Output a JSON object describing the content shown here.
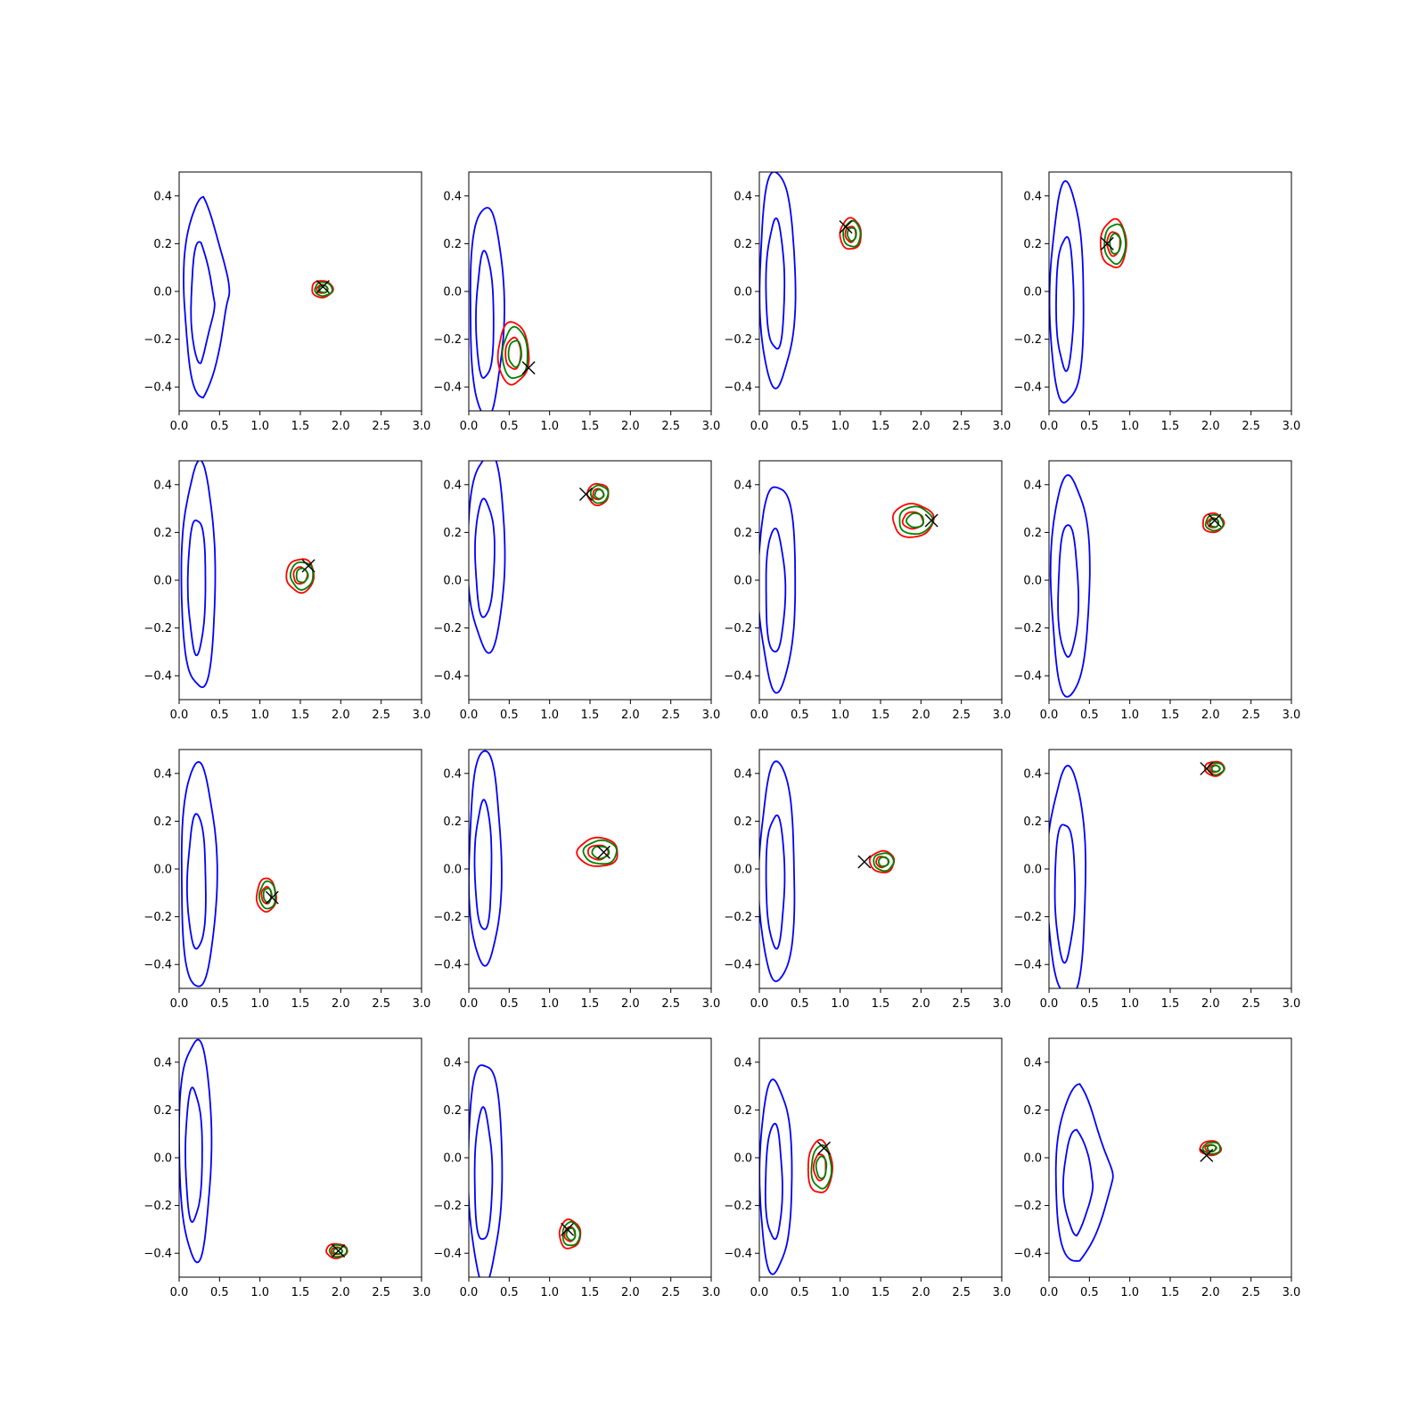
{
  "colors": {
    "broad_contour": "#0000ff",
    "green_contour": "#008000",
    "red_contour": "#ff0000",
    "marker": "#000000"
  },
  "chart_data": [
    {
      "type": "contour",
      "xlim": [
        0,
        3
      ],
      "ylim": [
        -0.5,
        0.5
      ],
      "xticks": [
        "0.0",
        "0.5",
        "1.0",
        "1.5",
        "2.0",
        "2.5",
        "3.0"
      ],
      "yticks": [
        "−0.4",
        "−0.2",
        "0.0",
        "0.2",
        "0.4"
      ],
      "broad": {
        "cx": 0.3,
        "cy": -0.02,
        "w": 0.6,
        "h": 0.84,
        "shape": "triangle"
      },
      "narrow": {
        "center": [
          1.77,
          0.01
        ],
        "w": 0.26,
        "h": 0.07
      },
      "marker": [
        1.78,
        0.02
      ]
    },
    {
      "type": "contour",
      "xlim": [
        0,
        3
      ],
      "ylim": [
        -0.5,
        0.5
      ],
      "xticks": [
        "0.0",
        "0.5",
        "1.0",
        "1.5",
        "2.0",
        "2.5",
        "3.0"
      ],
      "yticks": [
        "−0.4",
        "−0.2",
        "0.0",
        "0.2",
        "0.4"
      ],
      "broad": {
        "cx": 0.22,
        "cy": -0.08,
        "w": 0.42,
        "h": 0.88,
        "shape": "ellipse"
      },
      "narrow": {
        "center": [
          0.55,
          -0.26
        ],
        "w": 0.38,
        "h": 0.26
      },
      "marker": [
        0.74,
        -0.32
      ]
    },
    {
      "type": "contour",
      "xlim": [
        0,
        3
      ],
      "ylim": [
        -0.5,
        0.5
      ],
      "xticks": [
        "0.0",
        "0.5",
        "1.0",
        "1.5",
        "2.0",
        "2.5",
        "3.0"
      ],
      "yticks": [
        "−0.4",
        "−0.2",
        "0.0",
        "0.2",
        "0.4"
      ],
      "broad": {
        "cx": 0.22,
        "cy": 0.05,
        "w": 0.44,
        "h": 0.9,
        "shape": "ellipse"
      },
      "narrow": {
        "center": [
          1.13,
          0.24
        ],
        "w": 0.26,
        "h": 0.13
      },
      "marker": [
        1.07,
        0.27
      ]
    },
    {
      "type": "contour",
      "xlim": [
        0,
        3
      ],
      "ylim": [
        -0.5,
        0.5
      ],
      "xticks": [
        "0.0",
        "0.5",
        "1.0",
        "1.5",
        "2.0",
        "2.5",
        "3.0"
      ],
      "yticks": [
        "−0.4",
        "−0.2",
        "0.0",
        "0.2",
        "0.4"
      ],
      "broad": {
        "cx": 0.22,
        "cy": -0.02,
        "w": 0.42,
        "h": 0.92,
        "shape": "ellipse"
      },
      "narrow": {
        "center": [
          0.8,
          0.2
        ],
        "w": 0.32,
        "h": 0.2
      },
      "marker": [
        0.72,
        0.2
      ]
    },
    {
      "type": "contour",
      "xlim": [
        0,
        3
      ],
      "ylim": [
        -0.5,
        0.5
      ],
      "xticks": [
        "0.0",
        "0.5",
        "1.0",
        "1.5",
        "2.0",
        "2.5",
        "3.0"
      ],
      "yticks": [
        "−0.4",
        "−0.2",
        "0.0",
        "0.2",
        "0.4"
      ],
      "broad": {
        "cx": 0.24,
        "cy": 0.01,
        "w": 0.42,
        "h": 0.94,
        "shape": "ellipse"
      },
      "narrow": {
        "center": [
          1.5,
          0.02
        ],
        "w": 0.34,
        "h": 0.14
      },
      "marker": [
        1.6,
        0.06
      ]
    },
    {
      "type": "contour",
      "xlim": [
        0,
        3
      ],
      "ylim": [
        -0.5,
        0.5
      ],
      "xticks": [
        "0.0",
        "0.5",
        "1.0",
        "1.5",
        "2.0",
        "2.5",
        "3.0"
      ],
      "yticks": [
        "−0.4",
        "−0.2",
        "0.0",
        "0.2",
        "0.4"
      ],
      "broad": {
        "cx": 0.22,
        "cy": 0.12,
        "w": 0.46,
        "h": 0.82,
        "shape": "ellipse"
      },
      "narrow": {
        "center": [
          1.6,
          0.36
        ],
        "w": 0.26,
        "h": 0.09
      },
      "marker": [
        1.45,
        0.36
      ]
    },
    {
      "type": "contour",
      "xlim": [
        0,
        3
      ],
      "ylim": [
        -0.5,
        0.5
      ],
      "xticks": [
        "0.0",
        "0.5",
        "1.0",
        "1.5",
        "2.0",
        "2.5",
        "3.0"
      ],
      "yticks": [
        "−0.4",
        "−0.2",
        "0.0",
        "0.2",
        "0.4"
      ],
      "broad": {
        "cx": 0.22,
        "cy": -0.02,
        "w": 0.46,
        "h": 0.86,
        "shape": "ellipse"
      },
      "narrow": {
        "center": [
          1.9,
          0.25
        ],
        "w": 0.5,
        "h": 0.14
      },
      "marker": [
        2.13,
        0.25
      ]
    },
    {
      "type": "contour",
      "xlim": [
        0,
        3
      ],
      "ylim": [
        -0.5,
        0.5
      ],
      "xticks": [
        "0.0",
        "0.5",
        "1.0",
        "1.5",
        "2.0",
        "2.5",
        "3.0"
      ],
      "yticks": [
        "−0.4",
        "−0.2",
        "0.0",
        "0.2",
        "0.4"
      ],
      "broad": {
        "cx": 0.26,
        "cy": -0.02,
        "w": 0.48,
        "h": 0.92,
        "shape": "ellipse"
      },
      "narrow": {
        "center": [
          2.03,
          0.24
        ],
        "w": 0.26,
        "h": 0.08
      },
      "marker": [
        2.05,
        0.25
      ]
    },
    {
      "type": "contour",
      "xlim": [
        0,
        3
      ],
      "ylim": [
        -0.5,
        0.5
      ],
      "xticks": [
        "0.0",
        "0.5",
        "1.0",
        "1.5",
        "2.0",
        "2.5",
        "3.0"
      ],
      "yticks": [
        "−0.4",
        "−0.2",
        "0.0",
        "0.2",
        "0.4"
      ],
      "broad": {
        "cx": 0.24,
        "cy": -0.03,
        "w": 0.44,
        "h": 0.94,
        "shape": "ellipse"
      },
      "narrow": {
        "center": [
          1.08,
          -0.11
        ],
        "w": 0.24,
        "h": 0.14
      },
      "marker": [
        1.15,
        -0.12
      ]
    },
    {
      "type": "contour",
      "xlim": [
        0,
        3
      ],
      "ylim": [
        -0.5,
        0.5
      ],
      "xticks": [
        "0.0",
        "0.5",
        "1.0",
        "1.5",
        "2.0",
        "2.5",
        "3.0"
      ],
      "yticks": [
        "−0.4",
        "−0.2",
        "0.0",
        "0.2",
        "0.4"
      ],
      "broad": {
        "cx": 0.2,
        "cy": 0.04,
        "w": 0.4,
        "h": 0.9,
        "shape": "ellipse"
      },
      "narrow": {
        "center": [
          1.6,
          0.07
        ],
        "w": 0.5,
        "h": 0.12
      },
      "marker": [
        1.67,
        0.07
      ]
    },
    {
      "type": "contour",
      "xlim": [
        0,
        3
      ],
      "ylim": [
        -0.5,
        0.5
      ],
      "xticks": [
        "0.0",
        "0.5",
        "1.0",
        "1.5",
        "2.0",
        "2.5",
        "3.0"
      ],
      "yticks": [
        "−0.4",
        "−0.2",
        "0.0",
        "0.2",
        "0.4"
      ],
      "broad": {
        "cx": 0.22,
        "cy": -0.02,
        "w": 0.44,
        "h": 0.92,
        "shape": "ellipse"
      },
      "narrow": {
        "center": [
          1.52,
          0.03
        ],
        "w": 0.3,
        "h": 0.09
      },
      "marker": [
        1.3,
        0.03
      ]
    },
    {
      "type": "contour",
      "xlim": [
        0,
        3
      ],
      "ylim": [
        -0.5,
        0.5
      ],
      "xticks": [
        "0.0",
        "0.5",
        "1.0",
        "1.5",
        "2.0",
        "2.5",
        "3.0"
      ],
      "yticks": [
        "−0.4",
        "−0.2",
        "0.0",
        "0.2",
        "0.4"
      ],
      "broad": {
        "cx": 0.22,
        "cy": -0.06,
        "w": 0.48,
        "h": 0.96,
        "shape": "ellipse"
      },
      "narrow": {
        "center": [
          2.05,
          0.42
        ],
        "w": 0.24,
        "h": 0.06
      },
      "marker": [
        1.95,
        0.42
      ]
    },
    {
      "type": "contour",
      "xlim": [
        0,
        3
      ],
      "ylim": [
        -0.5,
        0.5
      ],
      "xticks": [
        "0.0",
        "0.5",
        "1.0",
        "1.5",
        "2.0",
        "2.5",
        "3.0"
      ],
      "yticks": [
        "−0.4",
        "−0.2",
        "0.0",
        "0.2",
        "0.4"
      ],
      "broad": {
        "cx": 0.2,
        "cy": 0.04,
        "w": 0.4,
        "h": 0.92,
        "shape": "ellipse"
      },
      "narrow": {
        "center": [
          1.95,
          -0.39
        ],
        "w": 0.26,
        "h": 0.06
      },
      "marker": [
        1.97,
        -0.39
      ]
    },
    {
      "type": "contour",
      "xlim": [
        0,
        3
      ],
      "ylim": [
        -0.5,
        0.5
      ],
      "xticks": [
        "0.0",
        "0.5",
        "1.0",
        "1.5",
        "2.0",
        "2.5",
        "3.0"
      ],
      "yticks": [
        "−0.4",
        "−0.2",
        "0.0",
        "0.2",
        "0.4"
      ],
      "broad": {
        "cx": 0.2,
        "cy": -0.05,
        "w": 0.42,
        "h": 0.92,
        "shape": "ellipse"
      },
      "narrow": {
        "center": [
          1.25,
          -0.32
        ],
        "w": 0.26,
        "h": 0.12
      },
      "marker": [
        1.22,
        -0.3
      ]
    },
    {
      "type": "contour",
      "xlim": [
        0,
        3
      ],
      "ylim": [
        -0.5,
        0.5
      ],
      "xticks": [
        "0.0",
        "0.5",
        "1.0",
        "1.5",
        "2.0",
        "2.5",
        "3.0"
      ],
      "yticks": [
        "−0.4",
        "−0.2",
        "0.0",
        "0.2",
        "0.4"
      ],
      "broad": {
        "cx": 0.2,
        "cy": -0.08,
        "w": 0.4,
        "h": 0.8,
        "shape": "ellipse"
      },
      "narrow": {
        "center": [
          0.75,
          -0.04
        ],
        "w": 0.3,
        "h": 0.22
      },
      "marker": [
        0.8,
        0.04
      ]
    },
    {
      "type": "contour",
      "xlim": [
        0,
        3
      ],
      "ylim": [
        -0.5,
        0.5
      ],
      "xticks": [
        "0.0",
        "0.5",
        "1.0",
        "1.5",
        "2.0",
        "2.5",
        "3.0"
      ],
      "yticks": [
        "−0.4",
        "−0.2",
        "0.0",
        "0.2",
        "0.4"
      ],
      "broad": {
        "cx": 0.38,
        "cy": -0.08,
        "w": 0.76,
        "h": 0.74,
        "shape": "triangle"
      },
      "narrow": {
        "center": [
          2.0,
          0.04
        ],
        "w": 0.26,
        "h": 0.06
      },
      "marker": [
        1.95,
        0.01
      ]
    }
  ]
}
